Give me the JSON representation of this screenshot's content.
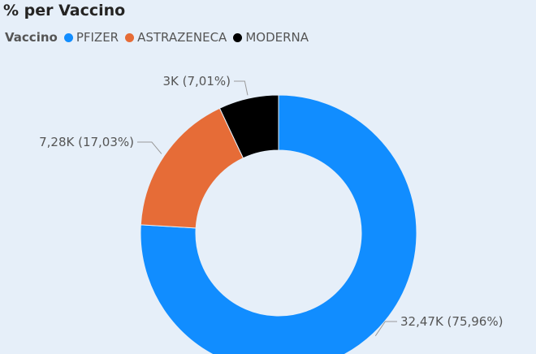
{
  "chart_data": {
    "type": "pie",
    "title": "% per Vaccino",
    "legend_title": "Vaccino",
    "legend_position": "top-left",
    "donut": true,
    "slices": [
      {
        "name": "PFIZER",
        "value": 32.47,
        "label": "32,47K (75,96%)",
        "percent": 75.96,
        "color": "#118dff"
      },
      {
        "name": "ASTRAZENECA",
        "value": 7.28,
        "label": "7,28K (17,03%)",
        "percent": 17.03,
        "color": "#e66c37"
      },
      {
        "name": "MODERNA",
        "value": 3.0,
        "label": "3K (7,01%)",
        "percent": 7.01,
        "color": "#000000"
      }
    ]
  }
}
